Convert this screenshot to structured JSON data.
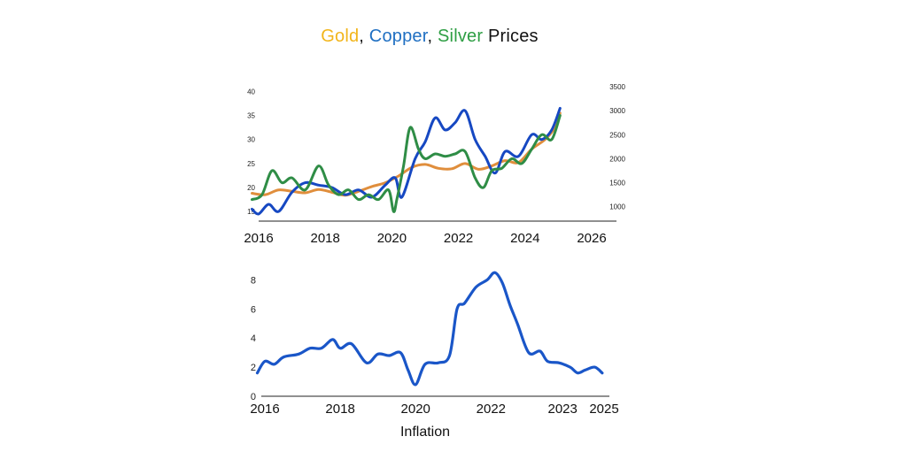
{
  "title": {
    "parts": [
      {
        "text": "Gold",
        "color": "#f2b51b"
      },
      {
        "text": ", ",
        "color": "#111111"
      },
      {
        "text": "Copper",
        "color": "#1f6fc2"
      },
      {
        "text": ", ",
        "color": "#111111"
      },
      {
        "text": "Silver",
        "color": "#2e9e44"
      },
      {
        "text": " Prices",
        "color": "#111111"
      }
    ]
  },
  "chart_data": [
    {
      "type": "line",
      "title": "Gold, Copper, Silver Prices",
      "xlim": [
        2016,
        2026
      ],
      "x_ticks": [
        "2016",
        "2018",
        "2020",
        "2022",
        "2024",
        "2026"
      ],
      "ylim_left": [
        13,
        41
      ],
      "y_ticks_left": [
        "15",
        "20",
        "25",
        "30",
        "35",
        "40"
      ],
      "ylim_right": [
        700,
        3500
      ],
      "y_ticks_right": [
        "1000",
        "1500",
        "2000",
        "2500",
        "3000",
        "3500"
      ],
      "grid": false,
      "series": [
        {
          "key": "gold",
          "color": "#e08e3c",
          "axis": "right",
          "x": [
            2015.8,
            2016.2,
            2016.6,
            2017.0,
            2017.4,
            2017.8,
            2018.2,
            2018.6,
            2019.0,
            2019.4,
            2019.8,
            2020.2,
            2020.6,
            2021.0,
            2021.4,
            2021.8,
            2022.2,
            2022.6,
            2023.0,
            2023.4,
            2023.8,
            2024.2,
            2024.6,
            2024.9,
            2025.05
          ],
          "values": [
            1280,
            1250,
            1350,
            1320,
            1290,
            1360,
            1300,
            1240,
            1320,
            1420,
            1500,
            1640,
            1820,
            1880,
            1800,
            1790,
            1900,
            1780,
            1850,
            1960,
            1920,
            2200,
            2400,
            2650,
            2950
          ]
        },
        {
          "key": "copper",
          "color": "#1648c2",
          "axis": "left",
          "x": [
            2015.8,
            2016.0,
            2016.3,
            2016.6,
            2017.0,
            2017.4,
            2017.8,
            2018.2,
            2018.6,
            2019.0,
            2019.4,
            2019.8,
            2020.1,
            2020.3,
            2020.7,
            2021.0,
            2021.3,
            2021.6,
            2021.9,
            2022.2,
            2022.5,
            2022.8,
            2023.1,
            2023.4,
            2023.8,
            2024.2,
            2024.5,
            2024.8,
            2025.05
          ],
          "values": [
            15.5,
            14.5,
            16.5,
            15.0,
            19.0,
            21.0,
            20.5,
            20.0,
            18.5,
            19.5,
            18.0,
            20.5,
            22.0,
            18.0,
            26.0,
            29.5,
            34.5,
            32.0,
            33.5,
            36.0,
            30.0,
            26.5,
            23.0,
            27.5,
            26.5,
            31.0,
            30.0,
            32.0,
            36.5
          ]
        },
        {
          "key": "silver",
          "color": "#2f8d46",
          "axis": "left",
          "x": [
            2015.8,
            2016.1,
            2016.4,
            2016.7,
            2017.0,
            2017.4,
            2017.8,
            2018.1,
            2018.4,
            2018.7,
            2019.0,
            2019.3,
            2019.6,
            2019.9,
            2020.05,
            2020.15,
            2020.35,
            2020.55,
            2020.8,
            2021.0,
            2021.3,
            2021.6,
            2021.9,
            2022.2,
            2022.5,
            2022.75,
            2023.0,
            2023.3,
            2023.6,
            2023.9,
            2024.2,
            2024.5,
            2024.8,
            2025.05
          ],
          "values": [
            17.5,
            18.5,
            23.5,
            21.0,
            22.0,
            19.5,
            24.5,
            20.5,
            18.5,
            19.5,
            17.5,
            18.5,
            17.5,
            19.5,
            15.0,
            17.5,
            24.5,
            32.5,
            28.0,
            26.0,
            27.0,
            26.5,
            27.0,
            27.5,
            22.0,
            20.0,
            23.5,
            24.0,
            26.0,
            25.0,
            28.0,
            31.0,
            30.0,
            35.0
          ]
        }
      ]
    },
    {
      "type": "line",
      "xlabel": "Inflation",
      "xlim": [
        2016,
        2025
      ],
      "x_tick_positions": [
        2016,
        2018,
        2020,
        2022,
        2023.9,
        2025
      ],
      "x_tick_labels": [
        "2016",
        "2018",
        "2020",
        "2022",
        "2023",
        "2025"
      ],
      "ylim": [
        0,
        9
      ],
      "y_ticks": [
        "0",
        "2",
        "4",
        "6",
        "8"
      ],
      "grid": false,
      "series": [
        {
          "key": "inflation",
          "color": "#1a56c8",
          "x": [
            2015.8,
            2016.0,
            2016.25,
            2016.5,
            2016.9,
            2017.2,
            2017.5,
            2017.8,
            2018.0,
            2018.3,
            2018.7,
            2019.0,
            2019.3,
            2019.6,
            2019.8,
            2020.0,
            2020.25,
            2020.6,
            2020.9,
            2021.1,
            2021.3,
            2021.6,
            2021.9,
            2022.1,
            2022.3,
            2022.5,
            2022.7,
            2023.0,
            2023.3,
            2023.5,
            2023.8,
            2024.1,
            2024.3,
            2024.5,
            2024.75,
            2024.95
          ],
          "values": [
            1.6,
            2.4,
            2.2,
            2.7,
            2.9,
            3.3,
            3.3,
            3.9,
            3.3,
            3.6,
            2.3,
            2.9,
            2.8,
            3.0,
            1.8,
            0.8,
            2.2,
            2.3,
            2.8,
            6.0,
            6.4,
            7.5,
            8.0,
            8.5,
            7.8,
            6.3,
            5.0,
            3.0,
            3.1,
            2.4,
            2.3,
            2.0,
            1.6,
            1.8,
            2.0,
            1.6
          ]
        }
      ]
    }
  ]
}
